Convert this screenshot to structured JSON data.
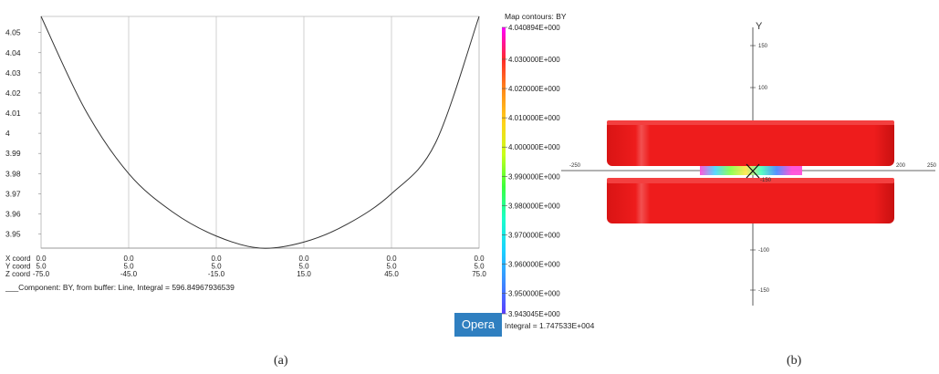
{
  "captions": {
    "a": "(a)",
    "b": "(b)"
  },
  "chart_data": [
    {
      "type": "line",
      "yticks": [
        4.05,
        4.04,
        4.03,
        4.02,
        4.01,
        4.0,
        3.99,
        3.98,
        3.97,
        3.96,
        3.95
      ],
      "ytick_labels": [
        "4.05",
        "4.04",
        "4.03",
        "4.02",
        "4.01",
        "4",
        "3.99",
        "3.98",
        "3.97",
        "3.96",
        "3.95"
      ],
      "ylim": [
        3.943,
        4.058
      ],
      "xlim": [
        -75,
        75
      ],
      "x": [
        -75,
        -60,
        -45,
        -30,
        -15,
        0,
        15,
        30,
        45,
        60,
        75
      ],
      "y": [
        4.058,
        4.012,
        3.98,
        3.961,
        3.949,
        3.943,
        3.946,
        3.955,
        3.97,
        3.995,
        4.058
      ],
      "coord_rows": [
        {
          "label": "X coord",
          "values": [
            "0.0",
            "0.0",
            "0.0",
            "0.0",
            "0.0",
            "0.0"
          ]
        },
        {
          "label": "Y coord",
          "values": [
            "5.0",
            "5.0",
            "5.0",
            "5.0",
            "5.0",
            "5.0"
          ]
        },
        {
          "label": "Z coord",
          "values": [
            "-75.0",
            "-45.0",
            "-15.0",
            "15.0",
            "45.0",
            "75.0"
          ]
        }
      ],
      "coord_positions": [
        -75,
        -45,
        -15,
        15,
        45,
        75
      ],
      "footer": "___Component: BY, from buffer: Line, Integral = 596.84967936539",
      "colors": {
        "curve": "#333333",
        "grid": "#bdbdbd"
      }
    },
    {
      "type": "heatmap",
      "title": "Map contours: BY",
      "legend_labels": [
        "4.040894E+000",
        "4.030000E+000",
        "4.020000E+000",
        "4.010000E+000",
        "4.000000E+000",
        "3.990000E+000",
        "3.980000E+000",
        "3.970000E+000",
        "3.960000E+000",
        "3.950000E+000",
        "3.943045E+000"
      ],
      "legend_values": [
        4.040894,
        4.03,
        4.02,
        4.01,
        4.0,
        3.99,
        3.98,
        3.97,
        3.96,
        3.95,
        3.943045
      ],
      "range": [
        3.943045,
        4.040894
      ],
      "integral": "Integral = 1.747533E+004",
      "colorbar": [
        "#ff00ff",
        "#ff2a2a",
        "#ff8c1a",
        "#ffd21a",
        "#c8ff1a",
        "#3cff3c",
        "#1affc8",
        "#1ad2ff",
        "#3c8cff",
        "#5a3cff"
      ]
    }
  ],
  "view3d": {
    "axis_label": "Y",
    "y_ticks": [
      "150",
      "100",
      "-100",
      "-150"
    ],
    "x_ticks": [
      "-250",
      "200",
      "250"
    ],
    "stray_tick": "-150",
    "magnet_color": "#ee1c1c"
  },
  "branding": {
    "opera": "Opera"
  }
}
